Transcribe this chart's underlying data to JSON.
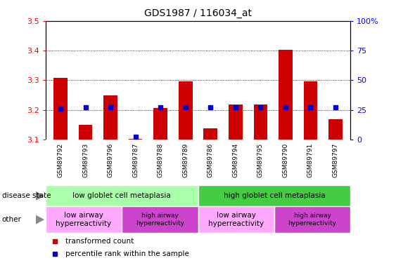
{
  "title": "GDS1987 / 116034_at",
  "samples": [
    "GSM89792",
    "GSM89793",
    "GSM89796",
    "GSM89787",
    "GSM89788",
    "GSM89789",
    "GSM89786",
    "GSM89794",
    "GSM89795",
    "GSM89790",
    "GSM89791",
    "GSM89797"
  ],
  "transformed_count": [
    3.308,
    3.148,
    3.248,
    3.102,
    3.205,
    3.295,
    3.138,
    3.218,
    3.218,
    3.402,
    3.295,
    3.168
  ],
  "percentile_rank": [
    26,
    27,
    27,
    2,
    27,
    27,
    27,
    27,
    27,
    27,
    27,
    27
  ],
  "ylim_left": [
    3.1,
    3.5
  ],
  "ylim_right": [
    0,
    100
  ],
  "yticks_left": [
    3.1,
    3.2,
    3.3,
    3.4,
    3.5
  ],
  "yticks_right": [
    0,
    25,
    50,
    75,
    100
  ],
  "bar_color": "#cc0000",
  "dot_color": "#0000cc",
  "disease_state_row": {
    "groups": [
      {
        "label": "low globlet cell metaplasia",
        "start": 0,
        "end": 6,
        "color": "#aaffaa"
      },
      {
        "label": "high globlet cell metaplasia",
        "start": 6,
        "end": 12,
        "color": "#44cc44"
      }
    ]
  },
  "other_row": {
    "groups": [
      {
        "label": "low airway\nhyperreactivity",
        "start": 0,
        "end": 3,
        "color": "#ffaaff"
      },
      {
        "label": "high airway\nhyperreactivity",
        "start": 3,
        "end": 6,
        "color": "#cc44cc"
      },
      {
        "label": "low airway\nhyperreactivity",
        "start": 6,
        "end": 9,
        "color": "#ffaaff"
      },
      {
        "label": "high airway\nhyperreactivity",
        "start": 9,
        "end": 12,
        "color": "#cc44cc"
      }
    ]
  },
  "legend": [
    {
      "label": "transformed count",
      "color": "#cc0000"
    },
    {
      "label": "percentile rank within the sample",
      "color": "#0000cc"
    }
  ],
  "left_label": "disease state",
  "other_label": "other",
  "background_color": "#ffffff",
  "xtick_bg_color": "#cccccc",
  "xtick_sep_color": "#ffffff"
}
